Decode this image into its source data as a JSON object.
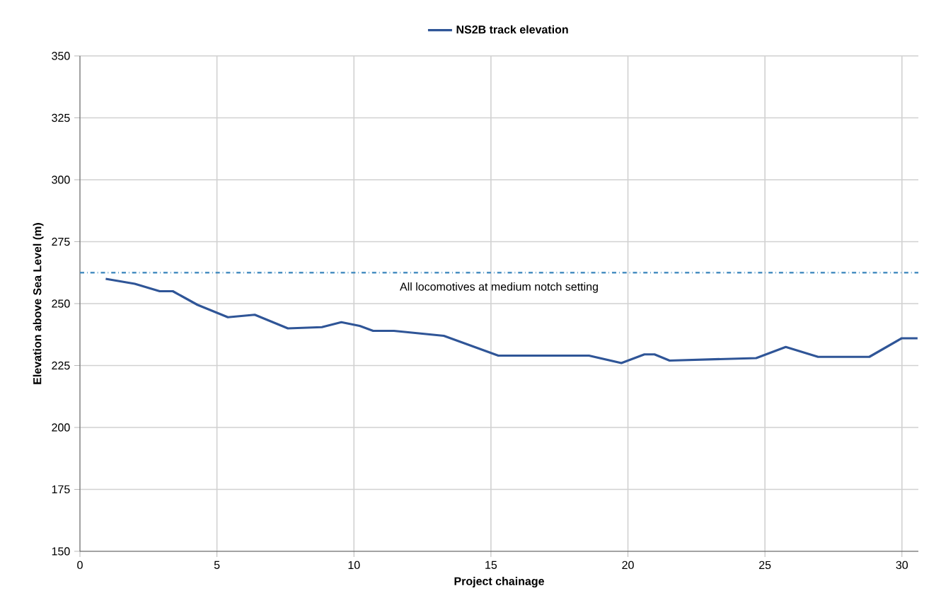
{
  "chart_data": {
    "type": "line",
    "xlabel": "Project chainage",
    "ylabel": "Elevation above Sea Level (m)",
    "x": [
      0.94,
      2.0,
      2.91,
      3.39,
      4.29,
      5.4,
      6.38,
      7.59,
      8.83,
      9.54,
      10.21,
      10.7,
      11.46,
      13.28,
      15.27,
      18.58,
      19.76,
      20.6,
      20.97,
      21.52,
      24.68,
      25.76,
      26.94,
      28.81,
      29.99,
      30.57
    ],
    "series": [
      {
        "name": "NS2B track elevation",
        "color": "#2f5597",
        "values": [
          260,
          258,
          255,
          255,
          249.5,
          244.5,
          245.5,
          240,
          240.5,
          242.5,
          241,
          239,
          239,
          237,
          229,
          229,
          226,
          229.5,
          229.5,
          227,
          228,
          232.5,
          228.5,
          228.5,
          236,
          236
        ]
      }
    ],
    "xlim": [
      0,
      30.6
    ],
    "ylim": [
      150,
      350
    ],
    "xticks": [
      0,
      5,
      10,
      15,
      20,
      25,
      30
    ],
    "yticks": [
      150,
      175,
      200,
      225,
      250,
      275,
      300,
      325,
      350
    ],
    "ref_lines": [
      {
        "axis": "y",
        "value": 262.5,
        "label": "All locomotives at medium notch setting",
        "color": "#4a90c2",
        "line_style": "dashdotted"
      }
    ],
    "grid": true,
    "legend": "top",
    "marker": "none",
    "line_style": "solid"
  }
}
